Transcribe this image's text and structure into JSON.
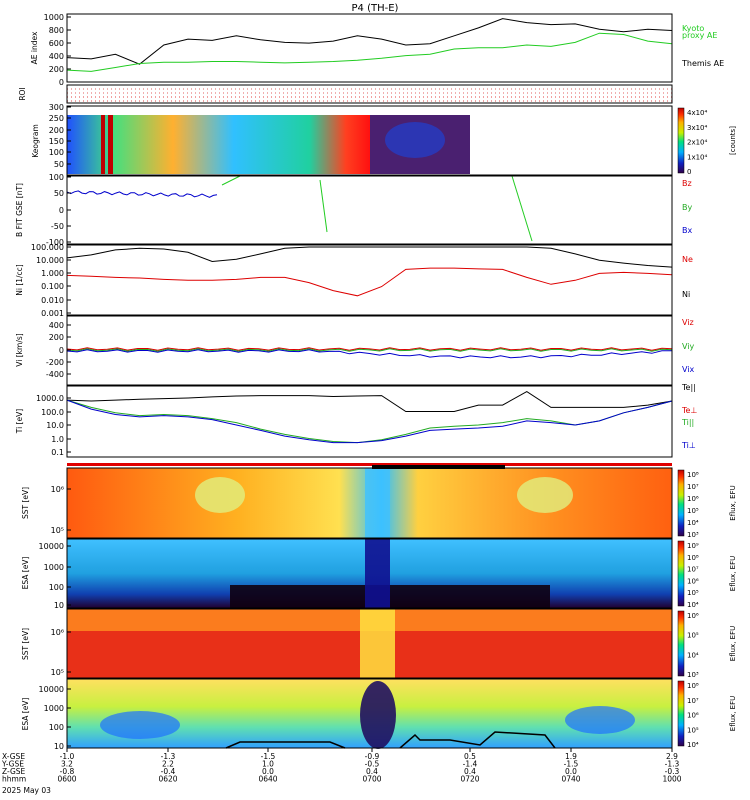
{
  "title": "P4 (TH-E)",
  "footer": {
    "rows": [
      {
        "label": "X-GSE",
        "values": [
          "-1.0",
          "-1.3",
          "-1.5",
          "-0.9",
          "0.5",
          "1.9",
          "2.9"
        ]
      },
      {
        "label": "Y-GSE",
        "values": [
          "3.2",
          "2.2",
          "1.0",
          "-0.5",
          "-1.4",
          "-1.5",
          "-1.3"
        ]
      },
      {
        "label": "Z-GSE",
        "values": [
          "-0.8",
          "-0.4",
          "0.0",
          "0.4",
          "0.4",
          "0.0",
          "-0.3"
        ]
      },
      {
        "label": "hhmm",
        "values": [
          "0600",
          "0620",
          "0640",
          "0700",
          "0720",
          "0740",
          "1000"
        ]
      }
    ],
    "date": "2025 May 03"
  },
  "panels": {
    "ae": {
      "ylabel": "AE index",
      "ticks": [
        "1000",
        "800",
        "600",
        "400",
        "200",
        "0"
      ],
      "legend": [
        {
          "text": "Kyoto",
          "color": "#22cc22"
        },
        {
          "text": "proxy AE",
          "color": "#22cc22"
        },
        {
          "text": "Themis AE",
          "color": "#000000"
        }
      ]
    },
    "roi": {
      "ylabel": "ROI"
    },
    "keogram": {
      "ylabel": "Keogram",
      "ticks": [
        "300",
        "250",
        "200",
        "150",
        "100",
        "50"
      ],
      "colorbar_label": "[counts]",
      "colorbar_ticks": [
        "4x10⁴",
        "3x10⁴",
        "2x10⁴",
        "1x10⁴",
        "0"
      ]
    },
    "bfield": {
      "ylabel": "B FIT GSE [nT]",
      "ticks": [
        "100",
        "50",
        "0",
        "-50",
        "-100"
      ],
      "legend": [
        {
          "text": "Bz",
          "color": "#dd0000"
        },
        {
          "text": "By",
          "color": "#22aa22"
        },
        {
          "text": "Bx",
          "color": "#0000cc"
        }
      ]
    },
    "density": {
      "ylabel": "Ni [1/cc]",
      "ticks": [
        "100.000",
        "10.000",
        "1.000",
        "0.100",
        "0.010",
        "0.001"
      ],
      "legend": [
        {
          "text": "Ne",
          "color": "#dd0000"
        },
        {
          "text": "Ni",
          "color": "#000000"
        }
      ]
    },
    "velocity": {
      "ylabel": "Vi [km/s]",
      "ticks": [
        "400",
        "200",
        "0",
        "-200",
        "-400"
      ],
      "legend": [
        {
          "text": "Viz",
          "color": "#dd0000"
        },
        {
          "text": "Viy",
          "color": "#22aa22"
        },
        {
          "text": "Vix",
          "color": "#0000cc"
        }
      ]
    },
    "temperature": {
      "ylabel": "Ti [eV]",
      "ticks": [
        "1000.0",
        "100.0",
        "10.0",
        "1.0",
        "0.1"
      ],
      "legend": [
        {
          "text": "Te||",
          "color": "#000000"
        },
        {
          "text": "Te⊥",
          "color": "#dd0000"
        },
        {
          "text": "Ti||",
          "color": "#22aa22"
        },
        {
          "text": "Ti⊥",
          "color": "#0000cc"
        }
      ]
    },
    "sst_e": {
      "ylabel": "SST [eV]",
      "ticks": [
        "10⁶",
        "10⁵"
      ],
      "colorbar_label": "Eflux, EFU",
      "colorbar_ticks": [
        "10⁸",
        "10⁷",
        "10⁶",
        "10⁵",
        "10⁴",
        "10³"
      ]
    },
    "esa_e": {
      "ylabel": "ESA [eV]",
      "ticks": [
        "10000",
        "1000",
        "100",
        "10"
      ],
      "colorbar_label": "Eflux, EFU",
      "colorbar_ticks": [
        "10⁹",
        "10⁸",
        "10⁷",
        "10⁶",
        "10⁵",
        "10⁴"
      ]
    },
    "sst_i": {
      "ylabel": "SST [eV]",
      "ticks": [
        "10⁶",
        "10⁵"
      ],
      "colorbar_label": "Eflux, EFU",
      "colorbar_ticks": [
        "10⁶",
        "10⁵",
        "10⁴",
        "10³"
      ]
    },
    "esa_i": {
      "ylabel": "ESA [eV]",
      "ticks": [
        "10000",
        "1000",
        "100",
        "10"
      ],
      "colorbar_label": "Eflux, EFU",
      "colorbar_ticks": [
        "10⁸",
        "10⁷",
        "10⁶",
        "10⁵",
        "10⁴"
      ]
    }
  },
  "chart_data": {
    "type": "line",
    "x_axis": [
      "0600",
      "0620",
      "0640",
      "0700",
      "0720",
      "0740",
      "1000"
    ],
    "ae_series": [
      {
        "name": "Themis AE",
        "color": "#000000",
        "values": [
          370,
          350,
          420,
          270,
          560,
          650,
          630,
          700,
          640,
          600,
          590,
          620,
          700,
          650,
          560,
          580,
          700,
          820,
          960,
          900,
          870,
          880,
          800,
          760,
          800,
          780
        ]
      },
      {
        "name": "Kyoto proxy AE",
        "color": "#22cc22",
        "values": [
          180,
          160,
          220,
          280,
          300,
          300,
          310,
          310,
          300,
          290,
          300,
          310,
          330,
          360,
          400,
          420,
          500,
          520,
          520,
          560,
          540,
          600,
          740,
          720,
          620,
          580
        ]
      }
    ],
    "density_series": [
      {
        "name": "Ni",
        "color": "#000000",
        "values": [
          15,
          25,
          60,
          80,
          70,
          40,
          8,
          12,
          30,
          80,
          100,
          100,
          100,
          100,
          100,
          100,
          100,
          100,
          100,
          100,
          80,
          30,
          10,
          6,
          4,
          3
        ]
      },
      {
        "name": "Ne",
        "color": "#dd0000",
        "values": [
          0.7,
          0.6,
          0.5,
          0.45,
          0.35,
          0.3,
          0.3,
          0.35,
          0.5,
          0.5,
          0.2,
          0.05,
          0.02,
          0.1,
          2,
          2.5,
          2.5,
          2.2,
          2,
          0.5,
          0.15,
          0.3,
          1,
          1.2,
          1,
          0.8
        ]
      }
    ],
    "temperature_series": [
      {
        "name": "Te||",
        "color": "#000000",
        "values": [
          700,
          600,
          700,
          800,
          900,
          1000,
          1200,
          1400,
          1500,
          1500,
          1500,
          1300,
          1400,
          1500,
          100,
          100,
          100,
          300,
          300,
          3000,
          200,
          200,
          200,
          200,
          300,
          600
        ]
      },
      {
        "name": "Ti||",
        "color": "#22aa22",
        "values": [
          700,
          200,
          80,
          50,
          60,
          50,
          30,
          15,
          5,
          2,
          1,
          0.6,
          0.5,
          0.8,
          2,
          6,
          8,
          10,
          15,
          30,
          20,
          10,
          20,
          80,
          200,
          600
        ]
      },
      {
        "name": "Ti⊥",
        "color": "#0000cc",
        "values": [
          700,
          150,
          60,
          40,
          50,
          40,
          25,
          10,
          4,
          1.5,
          0.8,
          0.5,
          0.5,
          0.7,
          1.5,
          4,
          5,
          6,
          8,
          20,
          15,
          10,
          20,
          80,
          200,
          600
        ]
      }
    ]
  }
}
